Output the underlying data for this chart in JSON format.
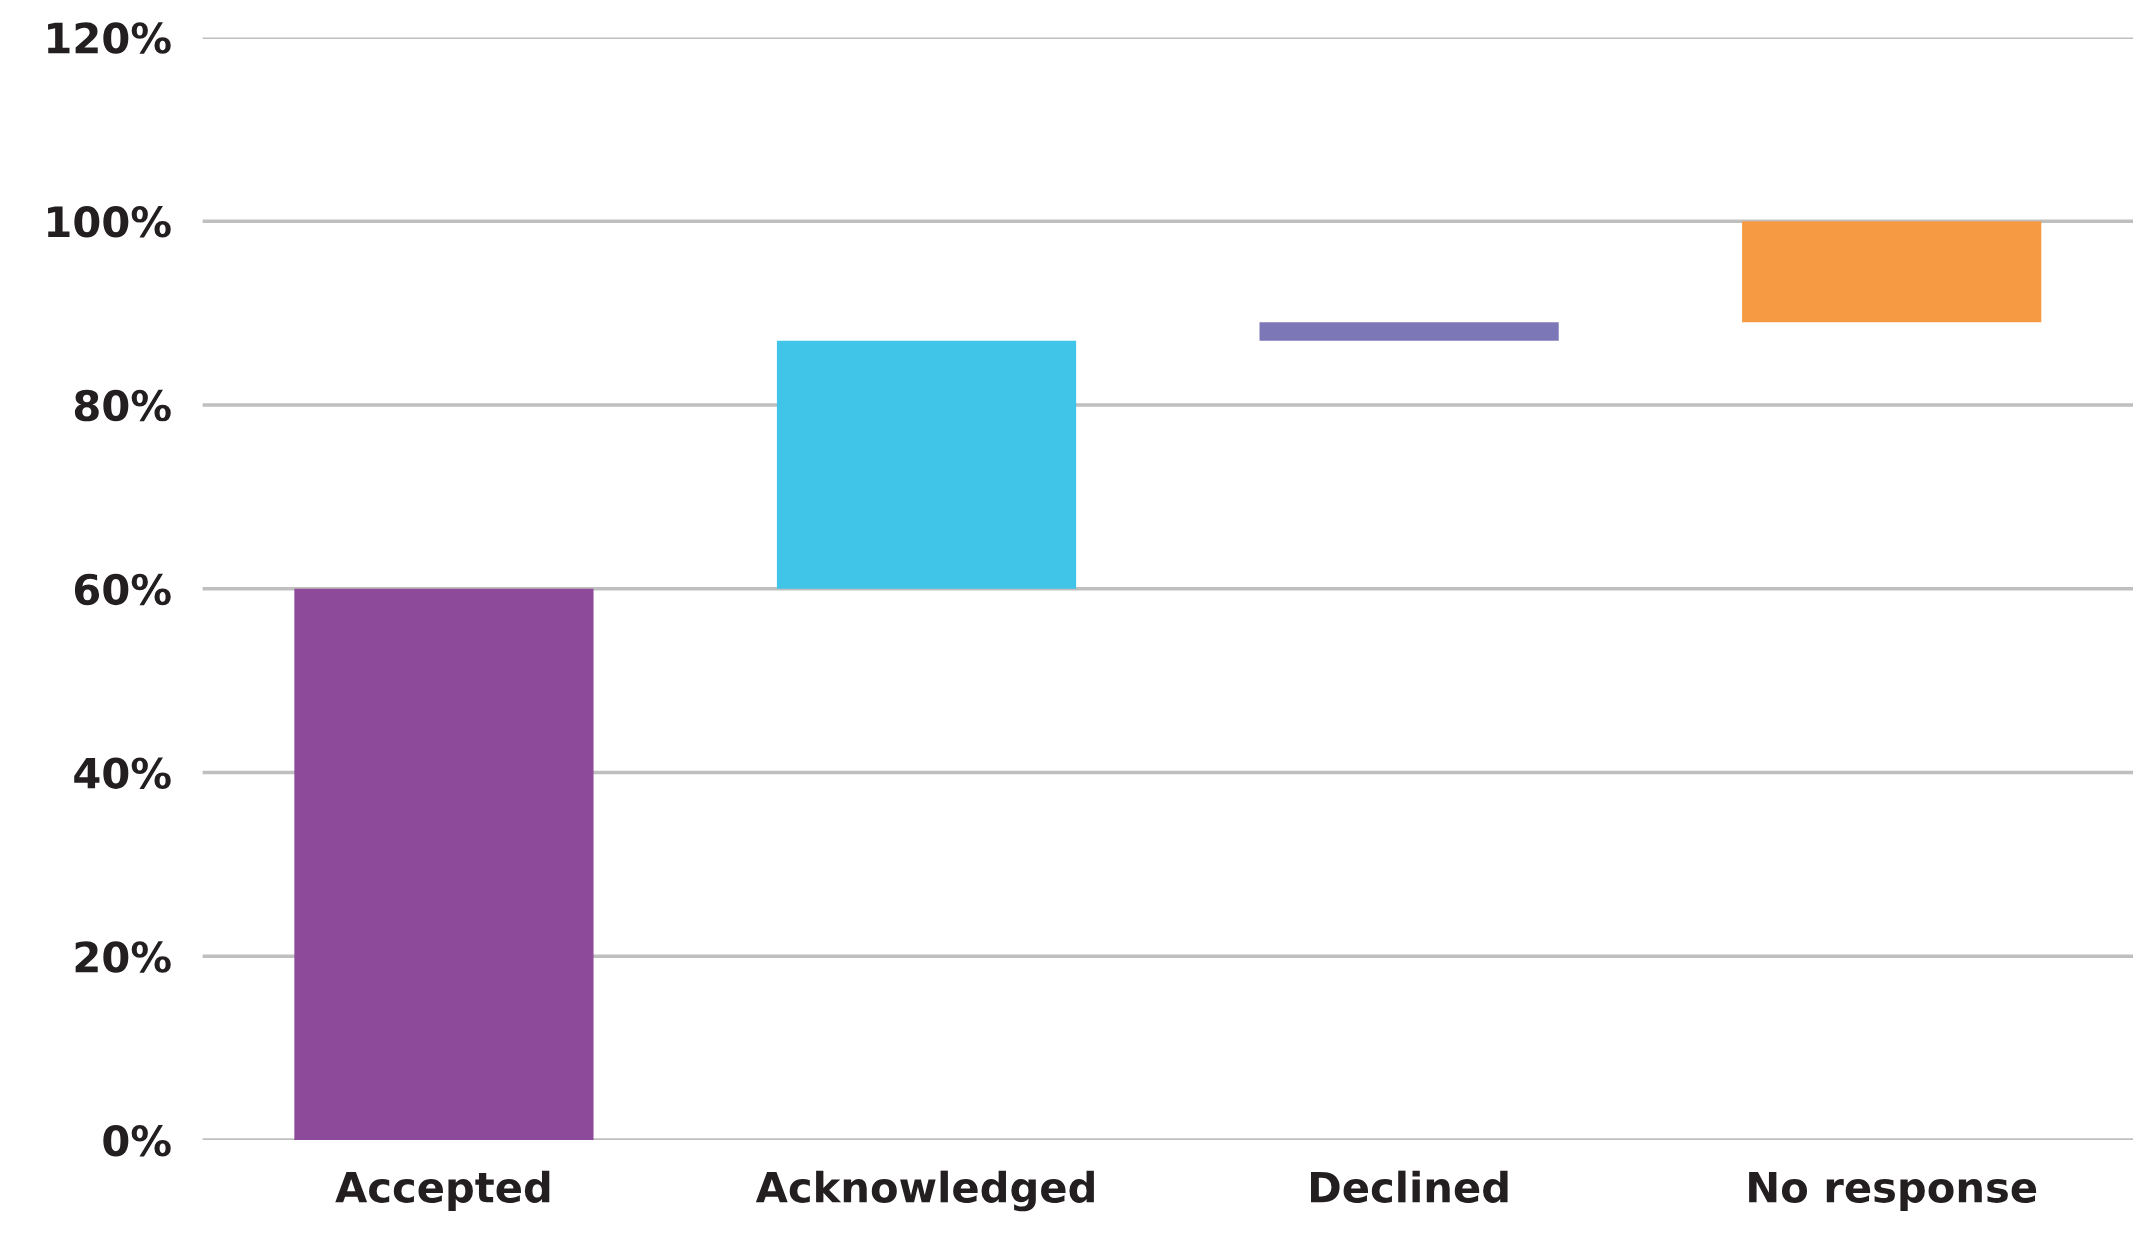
{
  "chart_data": {
    "type": "bar",
    "categories": [
      "Accepted",
      "Acknowledged",
      "Declined",
      "No response"
    ],
    "values": [
      60,
      27,
      2,
      11
    ],
    "base": [
      0,
      60,
      87,
      89
    ],
    "colors": [
      "#8e4a9a",
      "#40c5e9",
      "#7c78b8",
      "#f79a44"
    ],
    "ylim": [
      0,
      120
    ],
    "yticks": [
      {
        "value": 0,
        "label": "0%"
      },
      {
        "value": 20,
        "label": "20%"
      },
      {
        "value": 40,
        "label": "40%"
      },
      {
        "value": 60,
        "label": "60%"
      },
      {
        "value": 80,
        "label": "80%"
      },
      {
        "value": 100,
        "label": "100%"
      },
      {
        "value": 120,
        "label": "120%"
      }
    ],
    "grid": "y",
    "legend": false
  }
}
